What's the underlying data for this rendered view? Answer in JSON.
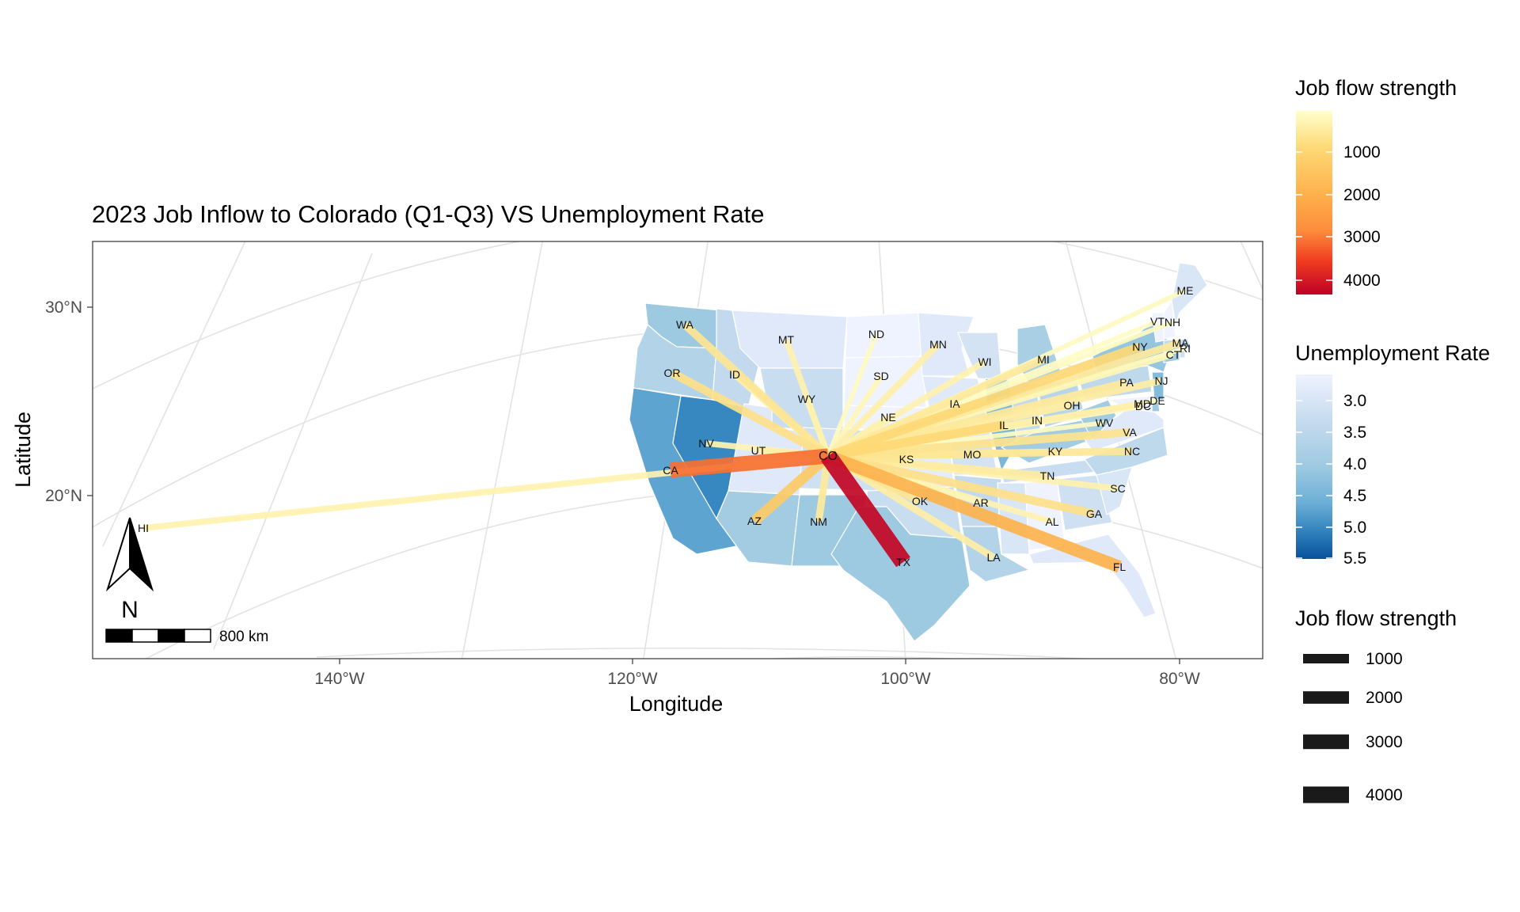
{
  "title": "2023 Job Inflow to Colorado (Q1-Q3) VS Unemployment Rate",
  "axes": {
    "xlabel": "Longitude",
    "ylabel": "Latitude",
    "x_ticks": [
      "140°W",
      "120°W",
      "100°W",
      "80°W"
    ],
    "y_ticks": [
      "30°N",
      "20°N"
    ]
  },
  "destination": "CO",
  "states": [
    {
      "abbr": "WA",
      "inflow": 600,
      "unemployment": 4.1
    },
    {
      "abbr": "OR",
      "inflow": 700,
      "unemployment": 3.7
    },
    {
      "abbr": "CA",
      "inflow": 3200,
      "unemployment": 4.8
    },
    {
      "abbr": "NV",
      "inflow": 250,
      "unemployment": 5.1
    },
    {
      "abbr": "ID",
      "inflow": 350,
      "unemployment": 3.4
    },
    {
      "abbr": "MT",
      "inflow": 300,
      "unemployment": 2.9
    },
    {
      "abbr": "WY",
      "inflow": 250,
      "unemployment": 3.3
    },
    {
      "abbr": "UT",
      "inflow": 400,
      "unemployment": 2.9
    },
    {
      "abbr": "AZ",
      "inflow": 1300,
      "unemployment": 4.0
    },
    {
      "abbr": "NM",
      "inflow": 500,
      "unemployment": 4.1
    },
    {
      "abbr": "ND",
      "inflow": 100,
      "unemployment": 2.0
    },
    {
      "abbr": "SD",
      "inflow": 200,
      "unemployment": 2.0
    },
    {
      "abbr": "NE",
      "inflow": 300,
      "unemployment": 2.5
    },
    {
      "abbr": "KS",
      "inflow": 600,
      "unemployment": 2.8
    },
    {
      "abbr": "OK",
      "inflow": 600,
      "unemployment": 3.3
    },
    {
      "abbr": "TX",
      "inflow": 4400,
      "unemployment": 4.1
    },
    {
      "abbr": "MN",
      "inflow": 350,
      "unemployment": 2.9
    },
    {
      "abbr": "IA",
      "inflow": 300,
      "unemployment": 2.9
    },
    {
      "abbr": "MO",
      "inflow": 500,
      "unemployment": 3.1
    },
    {
      "abbr": "AR",
      "inflow": 200,
      "unemployment": 3.4
    },
    {
      "abbr": "LA",
      "inflow": 400,
      "unemployment": 3.7
    },
    {
      "abbr": "WI",
      "inflow": 300,
      "unemployment": 3.1
    },
    {
      "abbr": "IL",
      "inflow": 900,
      "unemployment": 4.5
    },
    {
      "abbr": "IN",
      "inflow": 350,
      "unemployment": 3.4
    },
    {
      "abbr": "MI",
      "inflow": 500,
      "unemployment": 3.9
    },
    {
      "abbr": "OH",
      "inflow": 400,
      "unemployment": 3.6
    },
    {
      "abbr": "KY",
      "inflow": 200,
      "unemployment": 4.0
    },
    {
      "abbr": "TN",
      "inflow": 450,
      "unemployment": 3.3
    },
    {
      "abbr": "AL",
      "inflow": 250,
      "unemployment": 2.5
    },
    {
      "abbr": "GA",
      "inflow": 700,
      "unemployment": 3.2
    },
    {
      "abbr": "FL",
      "inflow": 2000,
      "unemployment": 2.9
    },
    {
      "abbr": "SC",
      "inflow": 300,
      "unemployment": 3.0
    },
    {
      "abbr": "NC",
      "inflow": 550,
      "unemployment": 3.5
    },
    {
      "abbr": "VA",
      "inflow": 650,
      "unemployment": 2.9
    },
    {
      "abbr": "WV",
      "inflow": 100,
      "unemployment": 4.0
    },
    {
      "abbr": "PA",
      "inflow": 500,
      "unemployment": 3.5
    },
    {
      "abbr": "NY",
      "inflow": 900,
      "unemployment": 4.2
    },
    {
      "abbr": "NJ",
      "inflow": 400,
      "unemployment": 4.4
    },
    {
      "abbr": "DE",
      "inflow": 100,
      "unemployment": 4.1
    },
    {
      "abbr": "MD",
      "inflow": 350,
      "unemployment": 2.0
    },
    {
      "abbr": "DC",
      "inflow": 150,
      "unemployment": 4.9
    },
    {
      "abbr": "CT",
      "inflow": 200,
      "unemployment": 4.1
    },
    {
      "abbr": "RI",
      "inflow": 60,
      "unemployment": 3.2
    },
    {
      "abbr": "MA",
      "inflow": 500,
      "unemployment": 3.4
    },
    {
      "abbr": "VT",
      "inflow": 80,
      "unemployment": 2.0
    },
    {
      "abbr": "NH",
      "inflow": 100,
      "unemployment": 2.2
    },
    {
      "abbr": "ME",
      "inflow": 120,
      "unemployment": 3.0
    },
    {
      "abbr": "HI",
      "inflow": 300,
      "unemployment": 3.0
    },
    {
      "abbr": "CO",
      "inflow": null,
      "unemployment": 3.2
    }
  ],
  "legend_color_flow": {
    "title": "Job flow strength",
    "labels": [
      "1000",
      "2000",
      "3000",
      "4000"
    ],
    "colors": [
      "#ffffcc",
      "#fed976",
      "#feb24c",
      "#fd8d3c",
      "#f03b20",
      "#bd0026"
    ]
  },
  "legend_unemployment": {
    "title": "Unemployment Rate",
    "labels": [
      "3.0",
      "3.5",
      "4.0",
      "4.5",
      "5.0",
      "5.5"
    ],
    "colors": [
      "#eff3ff",
      "#c6dbef",
      "#9ecae1",
      "#6baed6",
      "#3182bd",
      "#08519c"
    ]
  },
  "legend_width_flow": {
    "title": "Job flow strength",
    "labels": [
      "1000",
      "2000",
      "3000",
      "4000"
    ]
  },
  "north_arrow_label": "N",
  "scale_bar_label": "800 km"
}
